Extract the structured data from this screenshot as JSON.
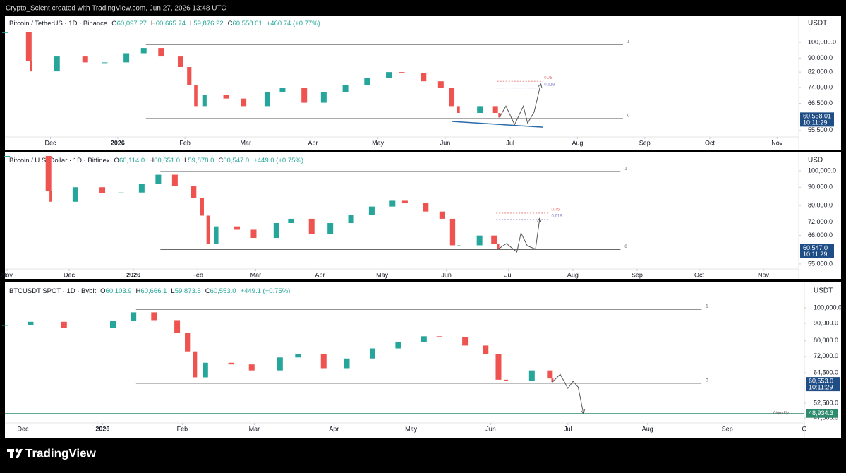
{
  "header": {
    "credit": "Crypto_Scient created with TradingView.com, Jun 27, 2026 13:48 UTC"
  },
  "footer": {
    "brand": "TradingView"
  },
  "chart_data": [
    {
      "type": "candlestick",
      "symbol": "Bitcoin / TetherUS · 1D · Binance",
      "ohlc": [
        [
          "O",
          "60,097.27"
        ],
        [
          "H",
          "60,665.74"
        ],
        [
          "L",
          "59,876.22"
        ],
        [
          "C",
          "60,558.01"
        ]
      ],
      "change": "+460.74 (+0.77%)",
      "currency": "USDT",
      "log_scale": true,
      "up_color": "#26a69a",
      "down_color": "#ef5350",
      "x": [
        -21,
        -10,
        -9,
        3,
        16,
        25,
        35,
        43,
        51,
        60,
        64,
        67,
        71,
        81,
        89,
        100,
        107,
        117,
        126,
        136,
        146,
        156,
        162,
        172,
        180,
        185,
        188,
        198,
        205,
        207
      ],
      "close": [
        107000,
        88500,
        82400,
        91000,
        87500,
        87500,
        93000,
        96300,
        91000,
        84800,
        75200,
        65300,
        70300,
        68700,
        65300,
        71900,
        73700,
        66800,
        71900,
        75200,
        79000,
        82000,
        81600,
        77100,
        73700,
        65300,
        62400,
        65300,
        62400,
        60558.01
      ],
      "xlim": [
        -21,
        345
      ],
      "xticks": [
        {
          "value": 0,
          "label": "Dec"
        },
        {
          "value": 31,
          "label": "2026"
        },
        {
          "value": 62,
          "label": "Feb"
        },
        {
          "value": 90,
          "label": "Mar"
        },
        {
          "value": 121,
          "label": "Apr"
        },
        {
          "value": 151,
          "label": "May"
        },
        {
          "value": 182,
          "label": "Jun"
        },
        {
          "value": 212,
          "label": "Jul"
        },
        {
          "value": 243,
          "label": "Aug"
        },
        {
          "value": 274,
          "label": "Sep"
        },
        {
          "value": 304,
          "label": "Oct"
        },
        {
          "value": 335,
          "label": "Nov"
        }
      ],
      "ylim": [
        53400,
        119700
      ],
      "yticks": [
        {
          "value": 100000,
          "label": "100,000.0"
        },
        {
          "value": 90000,
          "label": "90,000.0"
        },
        {
          "value": 82000,
          "label": "82,000.0"
        },
        {
          "value": 74000,
          "label": "74,000.0"
        },
        {
          "value": 66500,
          "label": "66,500.0"
        },
        {
          "value": 55500,
          "label": "55,500.0"
        }
      ],
      "last_price": {
        "value": 60558.01,
        "label": "60,558.01"
      },
      "countdown": "10:11:29",
      "tag_color": "#1f4e86",
      "levels": [
        {
          "label": "1",
          "value": 98600,
          "x": [
            44,
            264
          ],
          "color": "#555555"
        },
        {
          "label": "0",
          "value": 60080,
          "x": [
            44,
            264
          ],
          "color": "#555555"
        }
      ],
      "fib": [
        {
          "label": "0.75",
          "value": 77100,
          "x": [
            206,
            227
          ],
          "color": "#e57373"
        },
        {
          "label": "0.618",
          "value": 73700,
          "x": [
            206,
            227
          ],
          "color": "#7e7ec8"
        }
      ],
      "projection": {
        "x": [
          207,
          210,
          214,
          218,
          220,
          223,
          226
        ],
        "y": [
          60558.01,
          65300,
          57700,
          65300,
          58300,
          62800,
          75500
        ],
        "color": "#555555"
      },
      "trendline": {
        "x": [
          185,
          227
        ],
        "y": [
          58950,
          56750
        ],
        "color": "#2c6aa8"
      }
    },
    {
      "type": "candlestick",
      "symbol": "Bitcoin / U.S. Dollar · 1D · Bitfinex",
      "ohlc": [
        [
          "O",
          "60,114.0"
        ],
        [
          "H",
          "60,651.0"
        ],
        [
          "L",
          "59,878.0"
        ],
        [
          "C",
          "60,547.0"
        ]
      ],
      "change": "+449.0 (+0.75%)",
      "currency": "USD",
      "log_scale": true,
      "up_color": "#26a69a",
      "down_color": "#ef5350",
      "x": [
        -30,
        -10,
        -9,
        3,
        16,
        25,
        35,
        43,
        51,
        60,
        64,
        67,
        71,
        81,
        89,
        100,
        107,
        117,
        126,
        136,
        146,
        156,
        162,
        172,
        180,
        185,
        188,
        198,
        205,
        207
      ],
      "close": [
        110000,
        88000,
        82000,
        90000,
        86500,
        87000,
        92000,
        97500,
        90500,
        84000,
        75000,
        62500,
        70000,
        68500,
        65000,
        71500,
        73500,
        66500,
        71500,
        75500,
        79500,
        82500,
        81500,
        77000,
        73500,
        62000,
        62000,
        66000,
        62500,
        60547
      ],
      "xlim": [
        -31,
        352
      ],
      "xticks": [
        {
          "value": -30,
          "label": "Nov"
        },
        {
          "value": 0,
          "label": "Dec"
        },
        {
          "value": 31,
          "label": "2026"
        },
        {
          "value": 62,
          "label": "Feb"
        },
        {
          "value": 90,
          "label": "Mar"
        },
        {
          "value": 121,
          "label": "Apr"
        },
        {
          "value": 151,
          "label": "May"
        },
        {
          "value": 182,
          "label": "Jun"
        },
        {
          "value": 212,
          "label": "Jul"
        },
        {
          "value": 243,
          "label": "Aug"
        },
        {
          "value": 274,
          "label": "Sep"
        },
        {
          "value": 304,
          "label": "Oct"
        },
        {
          "value": 335,
          "label": "Nov"
        }
      ],
      "ylim": [
        53500,
        112500
      ],
      "yticks": [
        {
          "value": 100000,
          "label": "100,000.0"
        },
        {
          "value": 90000,
          "label": "90,000.0"
        },
        {
          "value": 80000,
          "label": "80,000.0"
        },
        {
          "value": 72000,
          "label": "72,000.0"
        },
        {
          "value": 66000,
          "label": "66,000.0"
        },
        {
          "value": 55000,
          "label": "55,000.0"
        }
      ],
      "last_price": {
        "value": 60547,
        "label": "60,547.0"
      },
      "countdown": "10:11:29",
      "tag_color": "#1f4e86",
      "levels": [
        {
          "label": "1",
          "value": 99550,
          "x": [
            44,
            266
          ],
          "color": "#555555"
        },
        {
          "label": "0",
          "value": 60350,
          "x": [
            44,
            266
          ],
          "color": "#555555"
        }
      ],
      "fib": [
        {
          "label": "0.75",
          "value": 76200,
          "x": [
            206,
            232
          ],
          "color": "#e57373"
        },
        {
          "label": "0.618",
          "value": 73170,
          "x": [
            206,
            232
          ],
          "color": "#7e7ec8"
        }
      ],
      "projection": {
        "x": [
          207,
          211,
          216,
          218,
          221,
          225,
          227
        ],
        "y": [
          60547,
          62700,
          59400,
          67100,
          61850,
          60500,
          73500
        ],
        "color": "#555555"
      }
    },
    {
      "type": "candlestick",
      "symbol": "BTCUSDT SPOT · 1D · Bybit",
      "ohlc": [
        [
          "O",
          "60,103.9"
        ],
        [
          "H",
          "60,666.1"
        ],
        [
          "L",
          "59,873.5"
        ],
        [
          "C",
          "60,553.0"
        ]
      ],
      "change": "+449.1 (+0.75%)",
      "currency": "USDT",
      "log_scale": true,
      "up_color": "#26a69a",
      "down_color": "#ef5350",
      "x": [
        -7,
        3,
        16,
        25,
        35,
        43,
        51,
        60,
        64,
        67,
        71,
        81,
        89,
        100,
        107,
        117,
        126,
        136,
        146,
        156,
        162,
        172,
        180,
        185,
        188,
        198,
        205,
        206
      ],
      "close": [
        89000,
        91000,
        87500,
        87500,
        91500,
        97000,
        92000,
        84500,
        74500,
        62500,
        69000,
        68200,
        65500,
        71500,
        73000,
        66500,
        71000,
        76000,
        79500,
        82500,
        82000,
        77500,
        73000,
        61500,
        61000,
        65500,
        62000,
        60553
      ],
      "xlim": [
        -7,
        304
      ],
      "xticks": [
        {
          "value": 0,
          "label": "Dec"
        },
        {
          "value": 31,
          "label": "2026"
        },
        {
          "value": 62,
          "label": "Feb"
        },
        {
          "value": 90,
          "label": "Mar"
        },
        {
          "value": 121,
          "label": "Apr"
        },
        {
          "value": 151,
          "label": "May"
        },
        {
          "value": 182,
          "label": "Jun"
        },
        {
          "value": 212,
          "label": "Jul"
        },
        {
          "value": 243,
          "label": "Aug"
        },
        {
          "value": 274,
          "label": "Sep"
        },
        {
          "value": 304,
          "label": "O"
        }
      ],
      "ylim": [
        46150,
        118200
      ],
      "yticks": [
        {
          "value": 100000,
          "label": "100,000.0"
        },
        {
          "value": 90000,
          "label": "90,000.0"
        },
        {
          "value": 80000,
          "label": "80,000.0"
        },
        {
          "value": 72000,
          "label": "72,000.0"
        },
        {
          "value": 64500,
          "label": "64,500.0"
        },
        {
          "value": 52500,
          "label": "52,500.0"
        },
        {
          "value": 47500,
          "label": "47,500.0"
        }
      ],
      "last_price": {
        "value": 60553,
        "label": "60,553.0"
      },
      "countdown": "10:11:29",
      "tag_color": "#1f4e86",
      "levels": [
        {
          "label": "1",
          "value": 99000,
          "x": [
            44,
            264
          ],
          "color": "#555555"
        },
        {
          "label": "0",
          "value": 60050,
          "x": [
            44,
            264
          ],
          "color": "#555555"
        }
      ],
      "liquidity": {
        "label": "Liquidity",
        "value": 48934.3,
        "value_label": "48,934.3",
        "color": "#2e8b6e"
      },
      "projection": {
        "x": [
          206,
          209,
          212,
          214,
          216,
          218
        ],
        "y": [
          60553,
          63800,
          58030,
          60870,
          58500,
          49120
        ],
        "color": "#555555"
      }
    }
  ]
}
